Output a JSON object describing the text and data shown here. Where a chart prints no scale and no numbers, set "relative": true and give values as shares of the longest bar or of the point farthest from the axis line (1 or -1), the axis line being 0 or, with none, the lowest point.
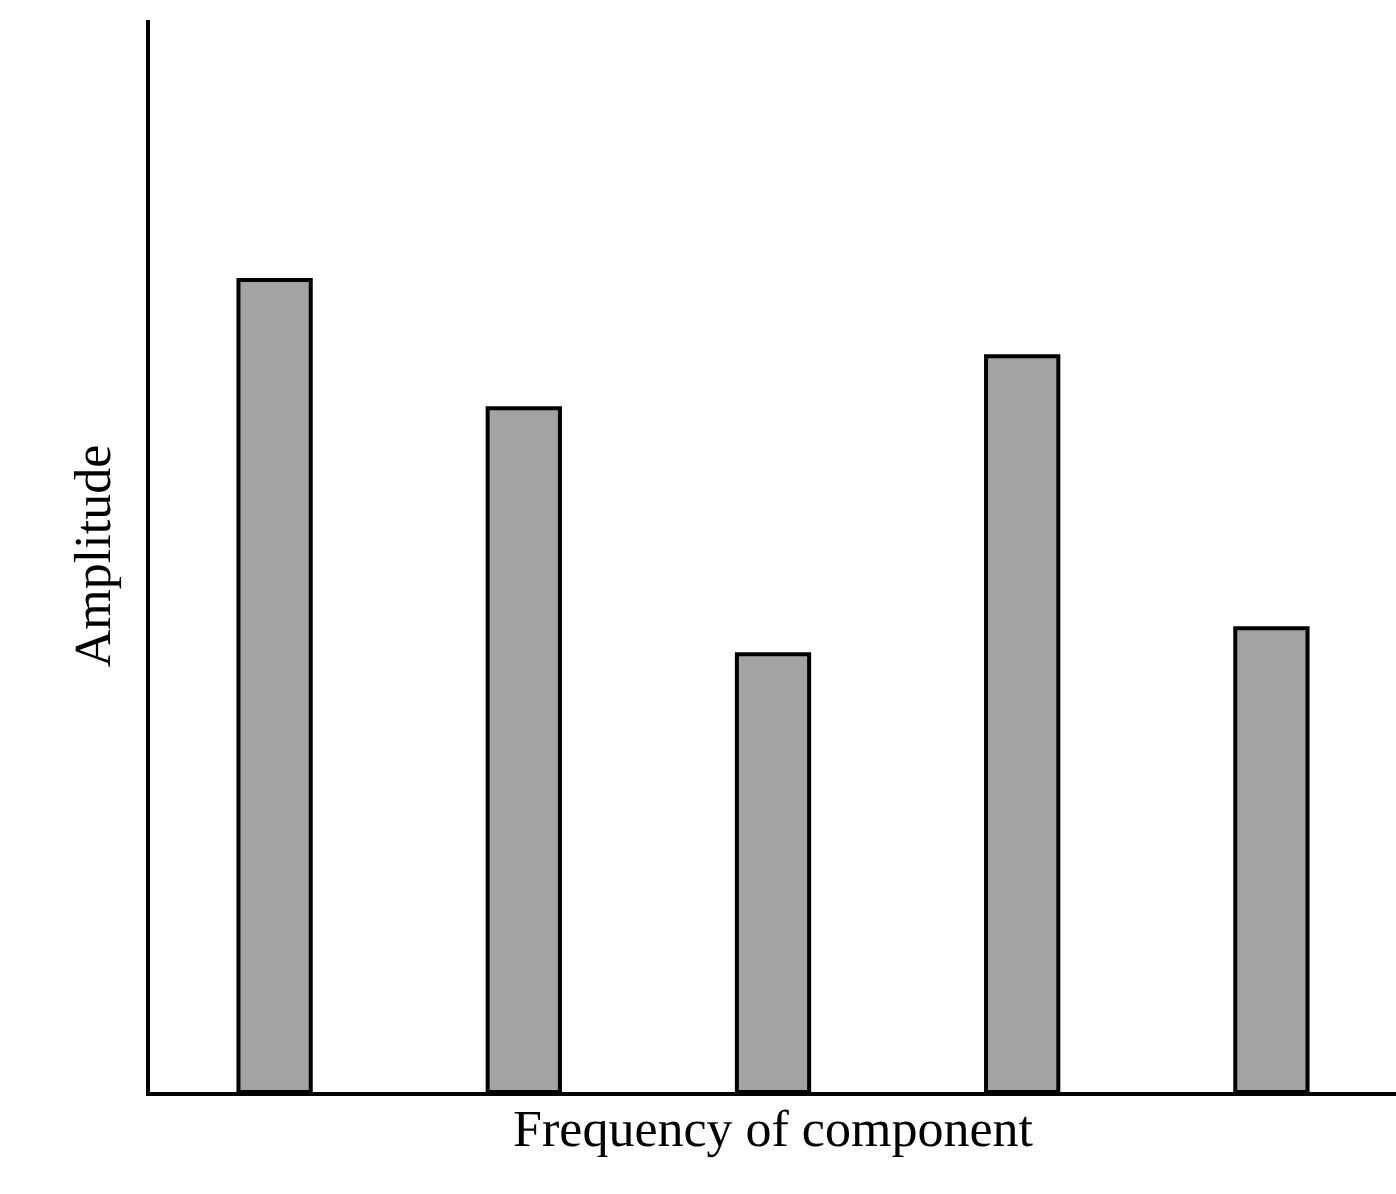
{
  "chart_data": {
    "type": "bar",
    "relative": true,
    "xlabel": "Frequency of component",
    "ylabel": "Amplitude",
    "categories": [
      null,
      null,
      null,
      null,
      null
    ],
    "values": [
      1,
      0.842,
      0.539,
      0.906,
      0.571
    ],
    "color": "#a3a3a3",
    "grid": false,
    "legend": false,
    "tick_labels": false
  }
}
